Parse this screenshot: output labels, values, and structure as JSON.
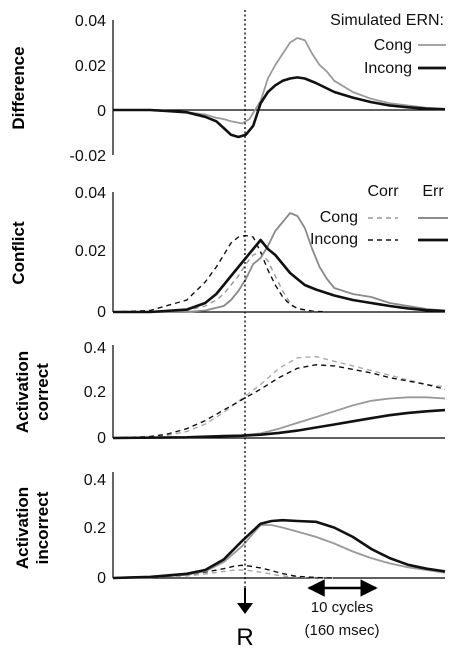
{
  "chart_data": [
    {
      "type": "line",
      "ylabel": "Difference",
      "ylim": [
        -0.02,
        0.04
      ],
      "yticks": [
        "0.04",
        "0.02",
        "0",
        "-0.02"
      ],
      "legend_title": "Simulated ERN:",
      "legend_placement": "top-right",
      "series": [
        {
          "name": "Cong",
          "color": "#9a9a9a",
          "style": "solid",
          "x": [
            -40,
            -30,
            -25,
            -20,
            -15,
            -12,
            -10,
            -8,
            -5,
            -3,
            0,
            2,
            4,
            6,
            8,
            10,
            12,
            14,
            16,
            18,
            20,
            25,
            30,
            35,
            40,
            45,
            50
          ],
          "y": [
            0,
            0,
            -0.0005,
            -0.001,
            -0.002,
            -0.0035,
            -0.004,
            -0.005,
            -0.006,
            -0.004,
            0.004,
            0.014,
            0.02,
            0.025,
            0.03,
            0.032,
            0.031,
            0.025,
            0.02,
            0.017,
            0.013,
            0.008,
            0.005,
            0.003,
            0.002,
            0.001,
            0.0005
          ]
        },
        {
          "name": "Incong",
          "color": "#111111",
          "style": "solid",
          "x": [
            -40,
            -30,
            -25,
            -20,
            -15,
            -12,
            -10,
            -8,
            -6,
            -4,
            -2,
            0,
            2,
            4,
            6,
            8,
            10,
            12,
            15,
            20,
            25,
            30,
            35,
            40,
            45,
            50
          ],
          "y": [
            0,
            0,
            -0.0005,
            -0.001,
            -0.003,
            -0.005,
            -0.008,
            -0.011,
            -0.012,
            -0.011,
            -0.007,
            0.003,
            0.008,
            0.011,
            0.013,
            0.014,
            0.0145,
            0.014,
            0.012,
            0.008,
            0.0055,
            0.0035,
            0.002,
            0.0012,
            0.0006,
            0.0003
          ]
        }
      ]
    },
    {
      "type": "line",
      "ylabel": "Conflict",
      "ylim": [
        0,
        0.04
      ],
      "yticks": [
        "0.04",
        "0.02",
        "0"
      ],
      "legend_headers": [
        "Corr",
        "Err"
      ],
      "legend_placement": "top-right",
      "series": [
        {
          "name": "Cong Corr",
          "color": "#999999",
          "style": "dashed",
          "x": [
            -40,
            -30,
            -20,
            -15,
            -12,
            -10,
            -8,
            -6,
            -4,
            -2,
            0,
            2,
            4,
            6,
            8,
            10,
            15
          ],
          "y": [
            0,
            0,
            0.0005,
            0.002,
            0.004,
            0.006,
            0.009,
            0.012,
            0.016,
            0.019,
            0.02,
            0.017,
            0.012,
            0.007,
            0.003,
            0.001,
            0
          ]
        },
        {
          "name": "Incong Corr",
          "color": "#111111",
          "style": "dashed",
          "x": [
            -40,
            -30,
            -20,
            -15,
            -12,
            -10,
            -8,
            -6,
            -4,
            -2,
            0,
            2,
            4,
            6,
            8,
            10,
            14,
            18
          ],
          "y": [
            0,
            0.0005,
            0.004,
            0.01,
            0.015,
            0.019,
            0.023,
            0.025,
            0.0255,
            0.025,
            0.02,
            0.014,
            0.009,
            0.005,
            0.0025,
            0.0012,
            0.0003,
            0
          ]
        },
        {
          "name": "Cong Err",
          "color": "#8a8a8a",
          "style": "solid",
          "x": [
            -40,
            -20,
            -15,
            -10,
            -8,
            -6,
            -4,
            -2,
            0,
            2,
            4,
            6,
            8,
            10,
            12,
            14,
            16,
            18,
            20,
            25,
            30,
            35,
            40,
            45,
            50
          ],
          "y": [
            0,
            0,
            0.0005,
            0.002,
            0.004,
            0.007,
            0.011,
            0.016,
            0.018,
            0.022,
            0.027,
            0.03,
            0.033,
            0.032,
            0.028,
            0.021,
            0.015,
            0.011,
            0.008,
            0.006,
            0.005,
            0.003,
            0.002,
            0.001,
            0.0005
          ]
        },
        {
          "name": "Incong Err",
          "color": "#111111",
          "style": "solid",
          "x": [
            -40,
            -30,
            -20,
            -15,
            -12,
            -10,
            -8,
            -6,
            -4,
            -2,
            0,
            2,
            4,
            6,
            8,
            10,
            12,
            15,
            20,
            25,
            30,
            35,
            40,
            45,
            50
          ],
          "y": [
            0,
            0,
            0.0008,
            0.003,
            0.006,
            0.009,
            0.012,
            0.015,
            0.018,
            0.021,
            0.024,
            0.021,
            0.019,
            0.016,
            0.013,
            0.011,
            0.009,
            0.0075,
            0.0055,
            0.004,
            0.003,
            0.002,
            0.0012,
            0.0006,
            0.0003
          ]
        }
      ]
    },
    {
      "type": "line",
      "ylabel": [
        "Activation",
        "correct"
      ],
      "ylim": [
        0,
        0.4
      ],
      "yticks": [
        "0.4",
        "0.2",
        "0"
      ],
      "series": [
        {
          "name": "Cong Corr",
          "color": "#aaaaaa",
          "style": "dashed",
          "x": [
            -40,
            -30,
            -25,
            -20,
            -15,
            -10,
            -5,
            0,
            5,
            10,
            15,
            20,
            25,
            30,
            35,
            40,
            45,
            50
          ],
          "y": [
            0,
            0.004,
            0.012,
            0.028,
            0.06,
            0.11,
            0.17,
            0.23,
            0.3,
            0.345,
            0.35,
            0.33,
            0.31,
            0.29,
            0.27,
            0.25,
            0.23,
            0.22
          ]
        },
        {
          "name": "Incong Corr",
          "color": "#111111",
          "style": "dashed",
          "x": [
            -40,
            -30,
            -25,
            -20,
            -15,
            -10,
            -5,
            0,
            5,
            10,
            15,
            20,
            25,
            30,
            35,
            40,
            45,
            50
          ],
          "y": [
            0,
            0.006,
            0.018,
            0.04,
            0.075,
            0.12,
            0.165,
            0.21,
            0.26,
            0.3,
            0.315,
            0.31,
            0.295,
            0.28,
            0.26,
            0.245,
            0.23,
            0.21
          ]
        },
        {
          "name": "Cong Err",
          "color": "#999999",
          "style": "solid",
          "x": [
            -40,
            -20,
            -10,
            -5,
            0,
            5,
            10,
            15,
            20,
            25,
            30,
            35,
            40,
            45,
            50
          ],
          "y": [
            0,
            0.003,
            0.008,
            0.012,
            0.02,
            0.04,
            0.065,
            0.09,
            0.115,
            0.14,
            0.16,
            0.17,
            0.175,
            0.175,
            0.17
          ]
        },
        {
          "name": "Incong Err",
          "color": "#111111",
          "style": "solid",
          "x": [
            -40,
            -20,
            -10,
            -5,
            0,
            5,
            10,
            15,
            20,
            25,
            30,
            35,
            40,
            45,
            50
          ],
          "y": [
            0,
            0.003,
            0.008,
            0.01,
            0.014,
            0.022,
            0.032,
            0.045,
            0.058,
            0.072,
            0.085,
            0.098,
            0.108,
            0.115,
            0.12
          ]
        }
      ]
    },
    {
      "type": "line",
      "ylabel": [
        "Activation",
        "incorrect"
      ],
      "ylim": [
        0,
        0.4
      ],
      "yticks": [
        "0.4",
        "0.2",
        "0"
      ],
      "series": [
        {
          "name": "Cong Corr",
          "color": "#aaaaaa",
          "style": "dashed",
          "x": [
            -40,
            -30,
            -20,
            -15,
            -10,
            -7,
            -5,
            -3,
            0,
            3,
            5,
            8,
            10,
            15,
            20
          ],
          "y": [
            0,
            0.002,
            0.008,
            0.015,
            0.025,
            0.03,
            0.03,
            0.028,
            0.022,
            0.015,
            0.01,
            0.005,
            0.003,
            0.001,
            0
          ]
        },
        {
          "name": "Incong Corr",
          "color": "#111111",
          "style": "dashed",
          "x": [
            -40,
            -30,
            -20,
            -15,
            -10,
            -7,
            -5,
            -3,
            0,
            3,
            5,
            8,
            10,
            15,
            20
          ],
          "y": [
            0,
            0.003,
            0.012,
            0.022,
            0.035,
            0.045,
            0.048,
            0.045,
            0.038,
            0.028,
            0.02,
            0.011,
            0.006,
            0.002,
            0
          ]
        },
        {
          "name": "Cong Err",
          "color": "#999999",
          "style": "solid",
          "x": [
            -40,
            -30,
            -20,
            -15,
            -10,
            -5,
            0,
            3,
            6,
            10,
            15,
            20,
            25,
            30,
            35,
            40,
            45,
            50
          ],
          "y": [
            0,
            0.003,
            0.012,
            0.025,
            0.06,
            0.12,
            0.2,
            0.2,
            0.19,
            0.175,
            0.155,
            0.13,
            0.1,
            0.075,
            0.055,
            0.04,
            0.03,
            0.02
          ]
        },
        {
          "name": "Incong Err",
          "color": "#111111",
          "style": "solid",
          "x": [
            -40,
            -30,
            -20,
            -15,
            -10,
            -5,
            0,
            3,
            6,
            10,
            15,
            20,
            25,
            30,
            35,
            40,
            45,
            50
          ],
          "y": [
            0,
            0.004,
            0.016,
            0.03,
            0.07,
            0.14,
            0.205,
            0.215,
            0.218,
            0.215,
            0.212,
            0.19,
            0.155,
            0.11,
            0.075,
            0.05,
            0.035,
            0.025
          ]
        }
      ]
    }
  ],
  "annotations": {
    "response_label": "R",
    "scale_bar_line1": "10 cycles",
    "scale_bar_line2": "(160  msec)"
  }
}
